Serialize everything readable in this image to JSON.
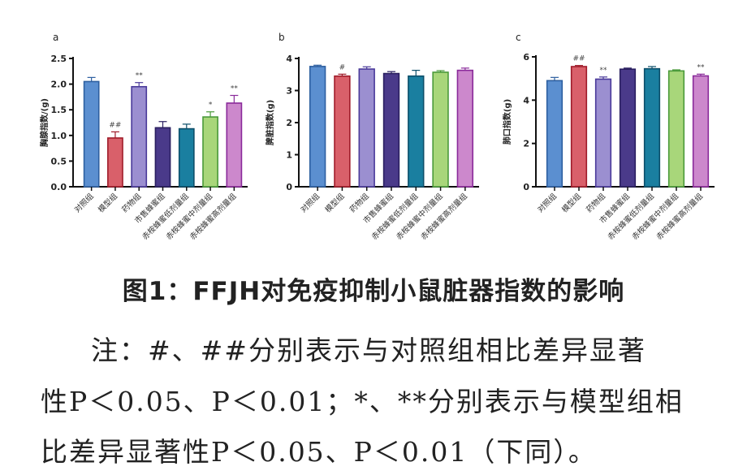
{
  "chart_data": [
    {
      "type": "bar",
      "panel": "a",
      "ylabel": "胸腺指数/(g)",
      "categories": [
        "对照组",
        "模型组",
        "药物组",
        "市售蜂蜜组",
        "赤桉蜂蜜低剂量组",
        "赤桉蜂蜜中剂量组",
        "赤桉蜂蜜高剂量组"
      ],
      "values": [
        2.05,
        0.95,
        1.95,
        1.15,
        1.13,
        1.36,
        1.63
      ],
      "errors": [
        0.08,
        0.12,
        0.08,
        0.12,
        0.09,
        0.1,
        0.15
      ],
      "annotations": [
        "",
        "##",
        "**",
        "",
        "",
        "*",
        "**"
      ],
      "ylim": [
        0,
        2.5
      ],
      "yticks": [
        "0.0",
        "0.5",
        "1.0",
        "1.5",
        "2.0",
        "2.5"
      ],
      "ytick_values": [
        0,
        0.5,
        1.0,
        1.5,
        2.0,
        2.5
      ]
    },
    {
      "type": "bar",
      "panel": "b",
      "ylabel": "脾脏指数(g)",
      "categories": [
        "对照组",
        "模型组",
        "药物组",
        "市售蜂蜜组",
        "赤桉蜂蜜低剂量组",
        "赤桉蜂蜜中剂量组",
        "赤桉蜂蜜高剂量组"
      ],
      "values": [
        3.75,
        3.45,
        3.67,
        3.53,
        3.45,
        3.57,
        3.63
      ],
      "errors": [
        0.04,
        0.06,
        0.07,
        0.06,
        0.18,
        0.05,
        0.07
      ],
      "annotations": [
        "",
        "#",
        "",
        "",
        "",
        "",
        ""
      ],
      "ylim": [
        0,
        4
      ],
      "yticks": [
        "0",
        "1",
        "2",
        "3",
        "4"
      ],
      "ytick_values": [
        0,
        1,
        2,
        3,
        4
      ]
    },
    {
      "type": "bar",
      "panel": "c",
      "ylabel": "肺口指数(g)",
      "categories": [
        "对照组",
        "模型组",
        "药物组",
        "市售蜂蜜组",
        "赤桉蜂蜜低剂量组",
        "赤桉蜂蜜中剂量组",
        "赤桉蜂蜜高剂量组"
      ],
      "values": [
        4.9,
        5.55,
        4.97,
        5.43,
        5.45,
        5.35,
        5.12
      ],
      "errors": [
        0.15,
        0.05,
        0.1,
        0.05,
        0.1,
        0.05,
        0.08
      ],
      "annotations": [
        "",
        "##",
        "**",
        "",
        "",
        "",
        "**"
      ],
      "ylim": [
        0,
        6
      ],
      "yticks": [
        "0",
        "2",
        "4",
        "6"
      ],
      "ytick_values": [
        0,
        2,
        4,
        6
      ]
    }
  ],
  "colors": {
    "fills": [
      "#5b8fd0",
      "#d9606a",
      "#9b8fd0",
      "#4a3a8a",
      "#1a7fa0",
      "#a8d67a",
      "#cc88cc"
    ],
    "strokes": [
      "#2d5fa0",
      "#a01c2a",
      "#4a3a9a",
      "#2a1f60",
      "#0d4f6a",
      "#4a9a3a",
      "#8a2a9a"
    ]
  },
  "caption": {
    "title": "图1：FFJH对免疫抑制小鼠脏器指数的影响",
    "note_line1": "注：#、##分别表示与对照组相比差异显著",
    "note_line2": "性P＜0.05、P＜0.01；*、**分别表示与模型组相",
    "note_line3": "比差异显著性P＜0.05、P＜0.01（下同）。"
  }
}
